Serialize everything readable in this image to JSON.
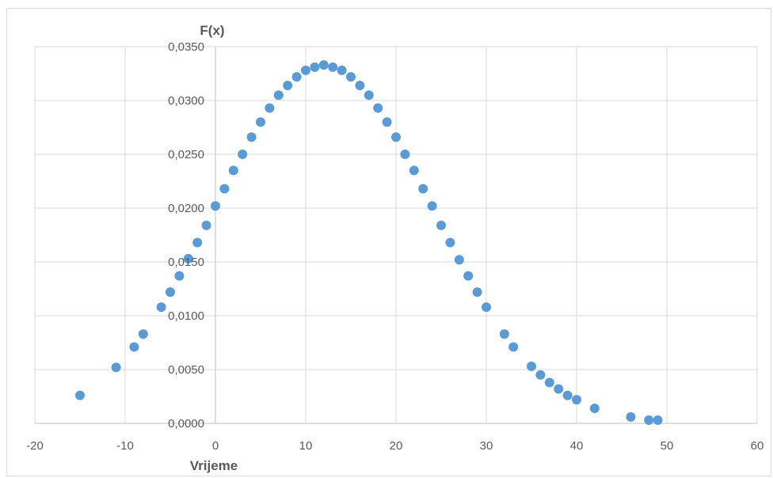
{
  "chart_data": {
    "type": "scatter",
    "title": "",
    "xlabel": "Vrijeme",
    "ylabel": "F(x)",
    "xlim": [
      -20,
      60
    ],
    "ylim": [
      0,
      0.035
    ],
    "x_ticks": [
      "-20",
      "-10",
      "0",
      "10",
      "20",
      "30",
      "40",
      "50",
      "60"
    ],
    "y_ticks": [
      "0,0000",
      "0,0050",
      "0,0100",
      "0,0150",
      "0,0200",
      "0,0250",
      "0,0300",
      "0,0350"
    ],
    "grid": true,
    "legend": "none",
    "marker_color": "#5b9bd5",
    "series": [
      {
        "points": [
          [
            -15,
            0.0026
          ],
          [
            -11,
            0.0052
          ],
          [
            -9,
            0.0071
          ],
          [
            -8,
            0.0083
          ],
          [
            -6,
            0.0108
          ],
          [
            -5,
            0.0122
          ],
          [
            -4,
            0.0137
          ],
          [
            -3,
            0.0153
          ],
          [
            -2,
            0.0168
          ],
          [
            -1,
            0.0184
          ],
          [
            0,
            0.0202
          ],
          [
            1,
            0.0218
          ],
          [
            2,
            0.0235
          ],
          [
            3,
            0.025
          ],
          [
            4,
            0.0266
          ],
          [
            5,
            0.028
          ],
          [
            6,
            0.0293
          ],
          [
            7,
            0.0305
          ],
          [
            8,
            0.0314
          ],
          [
            9,
            0.0322
          ],
          [
            10,
            0.0328
          ],
          [
            11,
            0.0331
          ],
          [
            12,
            0.0333
          ],
          [
            13,
            0.0331
          ],
          [
            14,
            0.0328
          ],
          [
            15,
            0.0322
          ],
          [
            16,
            0.0314
          ],
          [
            17,
            0.0305
          ],
          [
            18,
            0.0293
          ],
          [
            19,
            0.028
          ],
          [
            20,
            0.0266
          ],
          [
            21,
            0.025
          ],
          [
            22,
            0.0235
          ],
          [
            23,
            0.0218
          ],
          [
            24,
            0.0202
          ],
          [
            25,
            0.0184
          ],
          [
            26,
            0.0168
          ],
          [
            27,
            0.0152
          ],
          [
            28,
            0.0137
          ],
          [
            29,
            0.0122
          ],
          [
            30,
            0.0108
          ],
          [
            32,
            0.0083
          ],
          [
            33,
            0.0071
          ],
          [
            35,
            0.0053
          ],
          [
            36,
            0.0045
          ],
          [
            37,
            0.0038
          ],
          [
            38,
            0.0032
          ],
          [
            39,
            0.0026
          ],
          [
            40,
            0.0022
          ],
          [
            42,
            0.0014
          ],
          [
            46,
            0.0006
          ],
          [
            48,
            0.0003
          ],
          [
            49,
            0.0003
          ]
        ]
      }
    ]
  }
}
